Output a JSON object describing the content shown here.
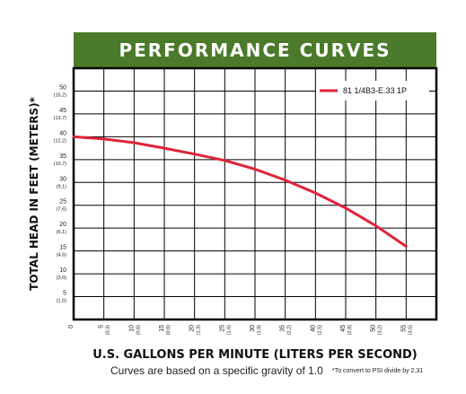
{
  "banner_title": "PERFORMANCE CURVES",
  "colors": {
    "banner": "#4a7a2a",
    "curve": "#e0243a",
    "grid": "#000000"
  },
  "footnote_main": "Curves are based on a specific gravity of 1.0",
  "footnote_psi": "*To convert to PSI divide by 2.31",
  "chart_data": {
    "type": "line",
    "title": "",
    "xlabel": "U.S. GALLONS PER MINUTE (LITERS PER SECOND)",
    "ylabel": "TOTAL HEAD IN FEET (METERS)*",
    "xlim": [
      0,
      60
    ],
    "ylim": [
      0,
      55
    ],
    "grid": true,
    "legend_position": "top-right",
    "x_ticks": [
      {
        "value": 0,
        "main": "0",
        "sub": ""
      },
      {
        "value": 5,
        "main": "5",
        "sub": "(0,3)"
      },
      {
        "value": 10,
        "main": "10",
        "sub": "(0,6)"
      },
      {
        "value": 15,
        "main": "15",
        "sub": "(0,9)"
      },
      {
        "value": 20,
        "main": "20",
        "sub": "(1,3)"
      },
      {
        "value": 25,
        "main": "25",
        "sub": "(1,6)"
      },
      {
        "value": 30,
        "main": "30",
        "sub": "(1,9)"
      },
      {
        "value": 35,
        "main": "35",
        "sub": "(2,2)"
      },
      {
        "value": 40,
        "main": "40",
        "sub": "(2,5)"
      },
      {
        "value": 45,
        "main": "45",
        "sub": "(2,8)"
      },
      {
        "value": 50,
        "main": "50",
        "sub": "(3,2)"
      },
      {
        "value": 55,
        "main": "55",
        "sub": "(3,5)"
      }
    ],
    "y_ticks": [
      {
        "value": 5,
        "main": "5",
        "sub": "(1,5)"
      },
      {
        "value": 10,
        "main": "10",
        "sub": "(3,0)"
      },
      {
        "value": 15,
        "main": "15",
        "sub": "(4,6)"
      },
      {
        "value": 20,
        "main": "20",
        "sub": "(6,1)"
      },
      {
        "value": 25,
        "main": "25",
        "sub": "(7,6)"
      },
      {
        "value": 30,
        "main": "30",
        "sub": "(9,1)"
      },
      {
        "value": 35,
        "main": "35",
        "sub": "(10,7)"
      },
      {
        "value": 40,
        "main": "40",
        "sub": "(12,2)"
      },
      {
        "value": 45,
        "main": "45",
        "sub": "(13,7)"
      },
      {
        "value": 50,
        "main": "50",
        "sub": "(15,2)"
      }
    ],
    "series": [
      {
        "name": "81 1/4B3-E.33 1P",
        "x": [
          0,
          5,
          10,
          15,
          20,
          25,
          30,
          35,
          40,
          45,
          50,
          55
        ],
        "y": [
          40,
          39.5,
          38.7,
          37.5,
          36.2,
          34.8,
          32.9,
          30.5,
          27.7,
          24.4,
          20.5,
          16
        ]
      }
    ]
  }
}
